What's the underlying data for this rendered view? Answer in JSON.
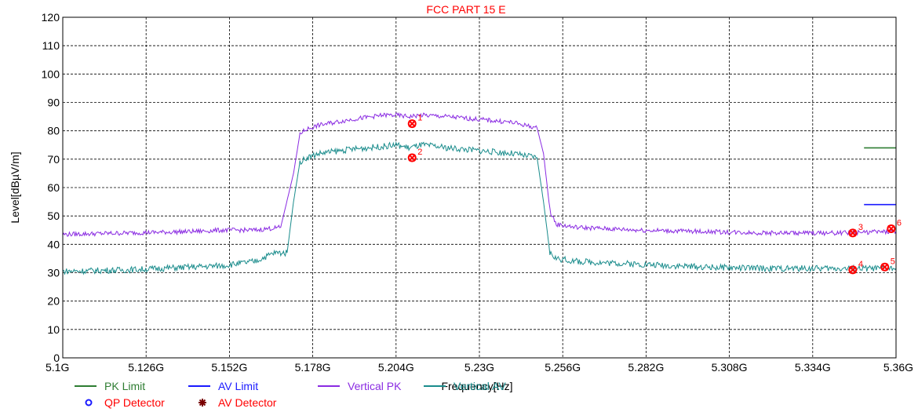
{
  "chart_data": {
    "type": "line",
    "title": "FCC PART 15 E",
    "xlabel": "Frequency[Hz]",
    "ylabel": "Level[dBµV/m]",
    "xlim": [
      5.1,
      5.36
    ],
    "ylim": [
      0,
      120
    ],
    "x_ticks": [
      5.1,
      5.126,
      5.152,
      5.178,
      5.204,
      5.23,
      5.256,
      5.282,
      5.308,
      5.334,
      5.36
    ],
    "x_tick_labels": [
      "5.1G",
      "5.126G",
      "5.152G",
      "5.178G",
      "5.204G",
      "5.23G",
      "5.256G",
      "5.282G",
      "5.308G",
      "5.334G",
      "5.36G"
    ],
    "y_ticks": [
      0,
      10,
      20,
      30,
      40,
      50,
      60,
      70,
      80,
      90,
      100,
      110,
      120
    ],
    "y_tick_labels": [
      "0",
      "10",
      "20",
      "30",
      "40",
      "50",
      "60",
      "70",
      "80",
      "90",
      "100",
      "110",
      "120"
    ],
    "grid": true,
    "legend_position": "bottom",
    "series": [
      {
        "name": "PK Limit",
        "color": "#2e7d32",
        "x": [
          5.35,
          5.36
        ],
        "values": [
          74,
          74
        ]
      },
      {
        "name": "AV Limit",
        "color": "#1a1aff",
        "x": [
          5.35,
          5.36
        ],
        "values": [
          54,
          54
        ]
      },
      {
        "name": "Vertical PK",
        "color": "#8a2be2",
        "x": [
          5.1,
          5.12,
          5.14,
          5.15,
          5.16,
          5.168,
          5.172,
          5.174,
          5.176,
          5.18,
          5.19,
          5.2,
          5.204,
          5.208,
          5.212,
          5.22,
          5.23,
          5.24,
          5.248,
          5.25,
          5.252,
          5.254,
          5.26,
          5.28,
          5.3,
          5.32,
          5.34,
          5.36
        ],
        "values": [
          43.5,
          44,
          44.5,
          45,
          45,
          46,
          65,
          79,
          80.5,
          82,
          84,
          85.5,
          85.5,
          85,
          85.5,
          85,
          84,
          83,
          81,
          72,
          52,
          47,
          46,
          45,
          44.5,
          44,
          44,
          44.5
        ]
      },
      {
        "name": "Vertical AV",
        "color": "#1a8c8c",
        "x": [
          5.1,
          5.12,
          5.14,
          5.15,
          5.16,
          5.166,
          5.17,
          5.172,
          5.174,
          5.176,
          5.18,
          5.19,
          5.2,
          5.204,
          5.208,
          5.212,
          5.22,
          5.23,
          5.24,
          5.248,
          5.25,
          5.252,
          5.254,
          5.26,
          5.28,
          5.3,
          5.32,
          5.34,
          5.36
        ],
        "values": [
          30.5,
          31,
          32,
          32.5,
          34,
          37,
          37,
          55,
          69,
          70.5,
          72,
          73.5,
          74.5,
          75,
          74,
          75,
          74,
          73,
          72,
          70.5,
          55,
          37,
          35,
          34,
          33,
          32,
          31.5,
          31.5,
          31.5
        ]
      }
    ],
    "markers": [
      {
        "label": "1",
        "x": 5.209,
        "y": 82.5,
        "color": "#ff0000"
      },
      {
        "label": "2",
        "x": 5.209,
        "y": 70.5,
        "color": "#ff0000"
      },
      {
        "label": "3",
        "x": 5.3465,
        "y": 44,
        "color": "#ff0000"
      },
      {
        "label": "4",
        "x": 5.3465,
        "y": 31,
        "color": "#ff0000"
      },
      {
        "label": "5",
        "x": 5.3565,
        "y": 32,
        "color": "#ff0000"
      },
      {
        "label": "6",
        "x": 5.3585,
        "y": 45.5,
        "color": "#ff0000"
      }
    ],
    "legend": [
      {
        "label": "PK Limit",
        "kind": "line",
        "color": "#2e7d32"
      },
      {
        "label": "AV Limit",
        "kind": "line",
        "color": "#1a1aff"
      },
      {
        "label": "Vertical PK",
        "kind": "line",
        "color": "#8a2be2"
      },
      {
        "label": "Vertical AV",
        "kind": "line",
        "color": "#1a8c8c"
      },
      {
        "label": "QP Detector",
        "kind": "circle",
        "color": "#1a1aff"
      },
      {
        "label": "AV Detector",
        "kind": "star",
        "color": "#7a0000"
      }
    ]
  }
}
